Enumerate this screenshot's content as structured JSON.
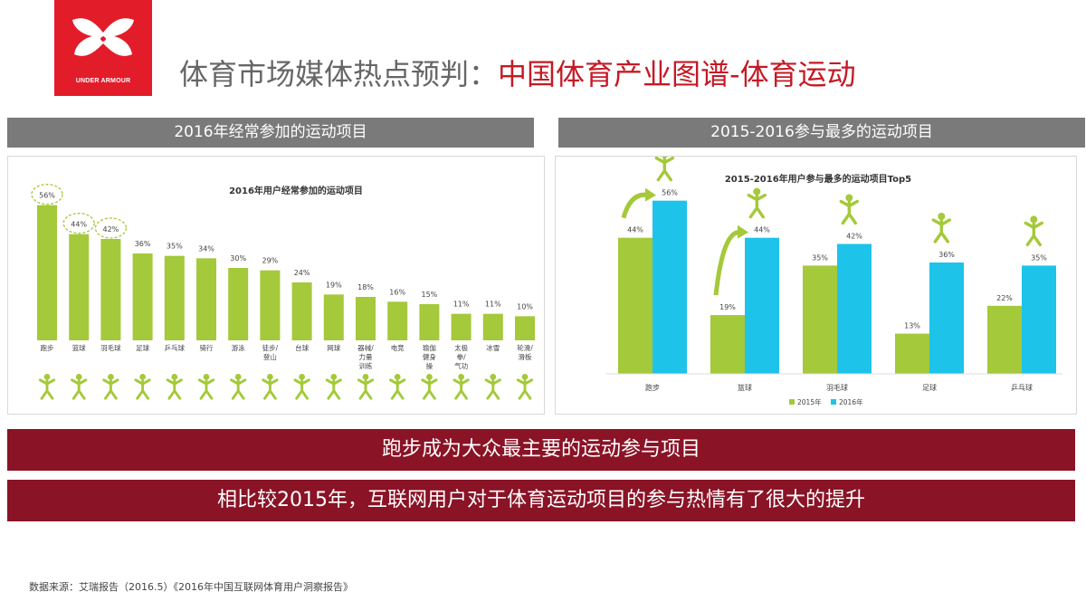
{
  "brand": {
    "name": "UNDER ARMOUR",
    "color": "#e31c2a"
  },
  "title": {
    "gray": "体育市场媒体热点预判：",
    "red": "中国体育产业图谱-体育运动"
  },
  "sections": {
    "left": "2016年经常参加的运动项目",
    "right": "2015-2016参与最多的运动项目"
  },
  "banners": [
    "跑步成为大众最主要的运动参与项目",
    "相比较2015年，互联网用户对于体育运动项目的参与热情有了很大的提升"
  ],
  "footer": "数据来源：艾瑞报告（2016.5）《2016年中国互联网体育用户洞察报告》",
  "colors": {
    "green": "#a4c93a",
    "cyan": "#1ec3ea",
    "banner": "#8a1326",
    "bar_gray": "#7a7a7a"
  },
  "chart_data": [
    {
      "type": "bar",
      "title": "2016年用户经常参加的运动项目",
      "categories": [
        "跑步",
        "篮球",
        "羽毛球",
        "足球",
        "乒乓球",
        "骑行",
        "游泳",
        "徒步/登山",
        "台球",
        "网球",
        "器械/力量训练",
        "电竞",
        "瑜伽健身操",
        "太极拳/气功",
        "冰雪",
        "轮滑/滑板"
      ],
      "category_lines": [
        [
          "跑步"
        ],
        [
          "篮球"
        ],
        [
          "羽毛球"
        ],
        [
          "足球"
        ],
        [
          "乒乓球"
        ],
        [
          "骑行"
        ],
        [
          "游泳"
        ],
        [
          "徒步/",
          "登山"
        ],
        [
          "台球"
        ],
        [
          "网球"
        ],
        [
          "器械/",
          "力量",
          "训练"
        ],
        [
          "电竞"
        ],
        [
          "瑜伽",
          "健身",
          "操"
        ],
        [
          "太极",
          "拳/",
          "气功"
        ],
        [
          "冰雪"
        ],
        [
          "轮滑/",
          "滑板"
        ]
      ],
      "values": [
        56,
        44,
        42,
        36,
        35,
        34,
        30,
        29,
        24,
        19,
        18,
        16,
        15,
        11,
        11,
        10
      ],
      "labels": [
        "56%",
        "44%",
        "42%",
        "36%",
        "35%",
        "34%",
        "30%",
        "29%",
        "24%",
        "19%",
        "18%",
        "16%",
        "15%",
        "11%",
        "11%",
        "10%"
      ],
      "highlighted": [
        "跑步",
        "篮球",
        "羽毛球"
      ],
      "ylim": [
        0,
        60
      ],
      "grid": false,
      "color": "#a4c93a"
    },
    {
      "type": "bar",
      "title": "2015-2016年用户参与最多的运动项目Top5",
      "categories": [
        "跑步",
        "篮球",
        "羽毛球",
        "足球",
        "乒乓球"
      ],
      "series": [
        {
          "name": "2015年",
          "values": [
            44,
            19,
            35,
            13,
            22
          ],
          "labels": [
            "44%",
            "19%",
            "35%",
            "13%",
            "22%"
          ],
          "color": "#a4c93a"
        },
        {
          "name": "2016年",
          "values": [
            56,
            44,
            42,
            36,
            35
          ],
          "labels": [
            "56%",
            "44%",
            "42%",
            "36%",
            "35%"
          ],
          "color": "#1ec3ea"
        }
      ],
      "ylim": [
        0,
        60
      ],
      "grid": false,
      "legend": "bottom"
    }
  ]
}
